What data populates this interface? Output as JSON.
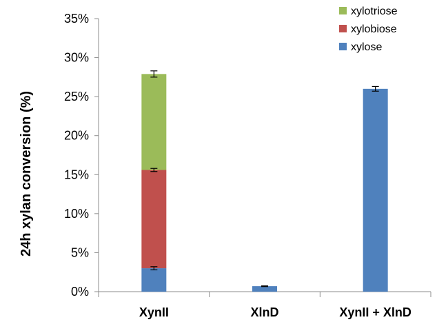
{
  "chart_data": {
    "type": "bar",
    "stacked": true,
    "title": "",
    "ylabel": "24h xylan conversion (%)",
    "xlabel": "",
    "categories": [
      "XynII",
      "XlnD",
      "XynII + XlnD"
    ],
    "ylim": [
      0,
      35
    ],
    "yticks": [
      0,
      5,
      10,
      15,
      20,
      25,
      30,
      35
    ],
    "ytick_labels": [
      "0%",
      "5%",
      "10%",
      "15%",
      "20%",
      "25%",
      "30%",
      "35%"
    ],
    "grid": false,
    "legend_position": "top-right",
    "series": [
      {
        "name": "xylose",
        "color": "#4F81BD",
        "values": [
          3.0,
          0.7,
          26.0
        ],
        "errors": [
          0.2,
          0.05,
          0.3
        ]
      },
      {
        "name": "xylobiose",
        "color": "#C0504D",
        "values": [
          12.6,
          0,
          0
        ],
        "errors": [
          0.2,
          null,
          null
        ]
      },
      {
        "name": "xylotriose",
        "color": "#9BBB59",
        "values": [
          12.3,
          0,
          0
        ],
        "errors": [
          0.4,
          null,
          null
        ]
      }
    ],
    "legend_order": [
      "xylotriose",
      "xylobiose",
      "xylose"
    ]
  }
}
